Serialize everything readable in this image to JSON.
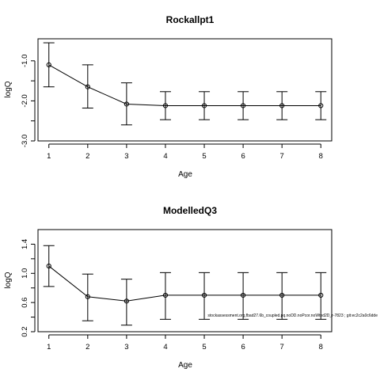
{
  "chart_data": [
    {
      "type": "line",
      "title": "Rockallpt1",
      "xlabel": "Age",
      "ylabel": "logQ",
      "x": [
        1,
        2,
        3,
        4,
        5,
        6,
        7,
        8
      ],
      "values": [
        -1.1,
        -1.65,
        -2.08,
        -2.12,
        -2.12,
        -2.12,
        -2.12,
        -2.12
      ],
      "lower": [
        -1.65,
        -2.18,
        -2.6,
        -2.47,
        -2.47,
        -2.47,
        -2.47,
        -2.47
      ],
      "upper": [
        -0.55,
        -1.1,
        -1.55,
        -1.77,
        -1.77,
        -1.77,
        -1.77,
        -1.77
      ],
      "xticks": [
        "1",
        "2",
        "3",
        "4",
        "5",
        "6",
        "7",
        "8"
      ],
      "yticks": [
        -1.0,
        -2.0,
        -3.0
      ],
      "yticklabels": [
        "-1.0",
        "-2.0",
        "-3.0"
      ],
      "yminor": [
        -1.5,
        -2.5
      ],
      "xlim": [
        0.72,
        8.28
      ],
      "ylim": [
        -3.0,
        -0.45
      ]
    },
    {
      "type": "line",
      "title": "ModelledQ3",
      "xlabel": "Age",
      "ylabel": "logQ",
      "x": [
        1,
        2,
        3,
        4,
        5,
        6,
        7,
        8
      ],
      "values": [
        1.1,
        0.68,
        0.62,
        0.7,
        0.7,
        0.7,
        0.7,
        0.7
      ],
      "lower": [
        0.82,
        0.35,
        0.29,
        0.37,
        0.37,
        0.37,
        0.37,
        0.37
      ],
      "upper": [
        1.38,
        0.99,
        0.92,
        1.01,
        1.01,
        1.01,
        1.01,
        1.01
      ],
      "xticks": [
        "1",
        "2",
        "3",
        "4",
        "5",
        "6",
        "7",
        "8"
      ],
      "yticks": [
        0.2,
        0.6,
        1.0,
        1.4
      ],
      "yticklabels": [
        "0.2",
        "0.6",
        "1.0",
        "1.4"
      ],
      "yminor": [
        0.4,
        0.8,
        1.2
      ],
      "xlim": [
        0.72,
        8.28
      ],
      "ylim": [
        0.2,
        1.6
      ]
    }
  ],
  "footnote": "stockassessment.org,fbad27.6b_coupled.pq.noDD.noPcor.noWtnd2D_r-7823 ; git:ec2c2a0c6dde"
}
